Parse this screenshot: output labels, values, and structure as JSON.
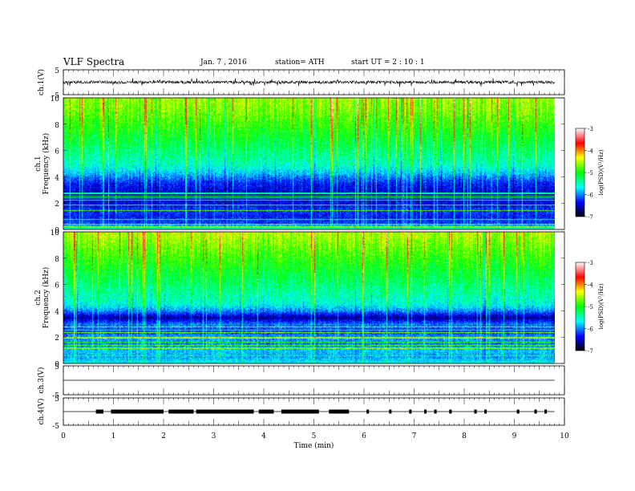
{
  "header": {
    "title": "VLF  Spectra",
    "date": "Jan.  7  , 2016",
    "station": "station= ATH",
    "start": "start  UT  =    2  : 10 : 1"
  },
  "panels": {
    "ch1_wave": {
      "ylabel": "ch.1(V)",
      "ticks": [
        "5",
        "-5"
      ]
    },
    "ch1_spec": {
      "ylabel": "ch.1\nFrequency  (kHz)",
      "ticks": [
        "10",
        "8",
        "6",
        "4",
        "2",
        "0"
      ]
    },
    "ch2_spec": {
      "ylabel": "ch.2\nFrequency  (kHz)",
      "ticks": [
        "10",
        "8",
        "6",
        "4",
        "2",
        "0"
      ]
    },
    "ch3_wave": {
      "ylabel": "ch.3(V)",
      "ticks": [
        "5",
        "-5"
      ]
    },
    "ch4_wave": {
      "ylabel": "ch.4(V)",
      "ticks": [
        "5",
        "-5"
      ]
    }
  },
  "colorbar": {
    "label": "log(PSD)(V²/Hz)",
    "ticks": [
      "-3",
      "-4",
      "-5",
      "-6",
      "-7"
    ],
    "colors": [
      "#ffffff",
      "#ff0000",
      "#ffff00",
      "#00ff00",
      "#00ffff",
      "#0000ff",
      "#000000"
    ]
  },
  "chart_data": {
    "type": "heatmap",
    "xlabel": "Time  (min)",
    "xticks": [
      "0",
      "1",
      "2",
      "3",
      "4",
      "5",
      "6",
      "7",
      "8",
      "9",
      "10"
    ],
    "xlim": [
      0,
      10
    ],
    "data_end_min": 9.8,
    "series": [
      {
        "name": "ch.1",
        "ylabel": "Frequency  (kHz)",
        "ylim": [
          0,
          10
        ],
        "log_psd_profile": {
          "freq_khz": [
            0,
            0.5,
            1,
            1.5,
            2,
            2.5,
            3,
            3.5,
            4,
            4.5,
            5,
            6,
            7,
            8,
            9,
            10
          ],
          "log_psd": [
            -5.3,
            -6.2,
            -6.3,
            -6.2,
            -6.4,
            -6.5,
            -6.4,
            -6.3,
            -6.0,
            -5.7,
            -5.5,
            -5.3,
            -5.1,
            -4.9,
            -4.7,
            -4.6
          ]
        }
      },
      {
        "name": "ch.2",
        "ylabel": "Frequency  (kHz)",
        "ylim": [
          0,
          10
        ],
        "log_psd_profile": {
          "freq_khz": [
            0,
            0.5,
            1,
            1.5,
            2,
            2.5,
            3,
            3.5,
            4,
            4.5,
            5,
            6,
            7,
            8,
            9,
            10
          ],
          "log_psd": [
            -5.6,
            -5.9,
            -5.8,
            -6.0,
            -5.9,
            -6.2,
            -6.0,
            -6.6,
            -6.0,
            -5.6,
            -5.5,
            -5.3,
            -5.1,
            -4.9,
            -4.7,
            -4.5
          ]
        }
      }
    ],
    "colorbar_range": [
      -7,
      -3
    ],
    "waveforms": [
      {
        "name": "ch.1(V)",
        "ylim": [
          -5,
          5
        ],
        "baseline": 0,
        "noise_amplitude": 0.6
      },
      {
        "name": "ch.3(V)",
        "ylim": [
          -5,
          5
        ],
        "baseline": 0,
        "noise_amplitude": 0
      },
      {
        "name": "ch.4(V)",
        "ylim": [
          -5,
          5
        ],
        "baseline": 0,
        "pulse_intervals_min": [
          [
            0.65,
            0.8
          ],
          [
            0.95,
            2.0
          ],
          [
            2.1,
            2.6
          ],
          [
            2.65,
            3.8
          ],
          [
            3.9,
            4.2
          ],
          [
            4.35,
            5.1
          ],
          [
            5.3,
            5.7
          ],
          [
            6.05,
            6.1
          ],
          [
            6.5,
            6.55
          ],
          [
            6.9,
            6.95
          ],
          [
            7.2,
            7.25
          ],
          [
            7.4,
            7.45
          ],
          [
            7.7,
            7.75
          ],
          [
            8.2,
            8.25
          ],
          [
            8.4,
            8.45
          ],
          [
            9.05,
            9.1
          ],
          [
            9.4,
            9.45
          ],
          [
            9.6,
            9.65
          ]
        ]
      }
    ]
  }
}
